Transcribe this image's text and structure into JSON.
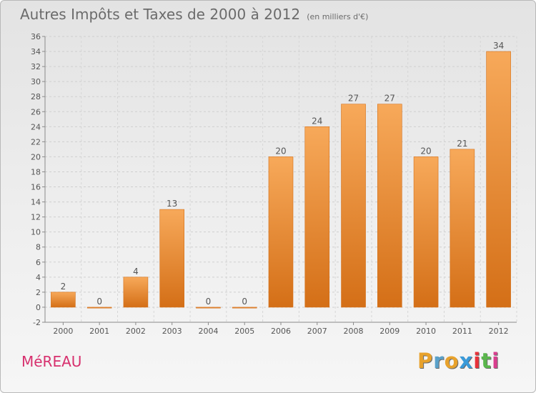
{
  "header": {
    "title": "Autres Impôts et Taxes de 2000 à 2012",
    "unit": "(en milliers d'€)"
  },
  "footer": {
    "commune": "MéREAU",
    "logo_text": "Proxiti",
    "logo_colors": [
      "#e8a22c",
      "#5aa1c9",
      "#e8a22c",
      "#3a9ad9",
      "#e8323a",
      "#5ab64c",
      "#d93e8e"
    ]
  },
  "chart_data": {
    "type": "bar",
    "title": "Autres Impôts et Taxes de 2000 à 2012",
    "subtitle": "(en milliers d'€)",
    "xlabel": "",
    "ylabel": "",
    "categories": [
      "2000",
      "2001",
      "2002",
      "2003",
      "2004",
      "2005",
      "2006",
      "2007",
      "2008",
      "2009",
      "2010",
      "2011",
      "2012"
    ],
    "values": [
      2,
      0,
      4,
      13,
      0,
      0,
      20,
      24,
      27,
      27,
      20,
      21,
      34
    ],
    "value_labels": [
      "2",
      "0",
      "4",
      "13",
      "0",
      "0",
      "20",
      "24",
      "27",
      "27",
      "20",
      "21",
      "34"
    ],
    "ylim": [
      -2,
      36
    ],
    "yticks": [
      -2,
      0,
      2,
      4,
      6,
      8,
      10,
      12,
      14,
      16,
      18,
      20,
      22,
      24,
      26,
      28,
      30,
      32,
      34,
      36
    ],
    "grid": true,
    "legend": "none",
    "bar_color": "#f0943c",
    "bar_color_light": "#f7a95a",
    "bar_color_dark": "#d46f17"
  }
}
